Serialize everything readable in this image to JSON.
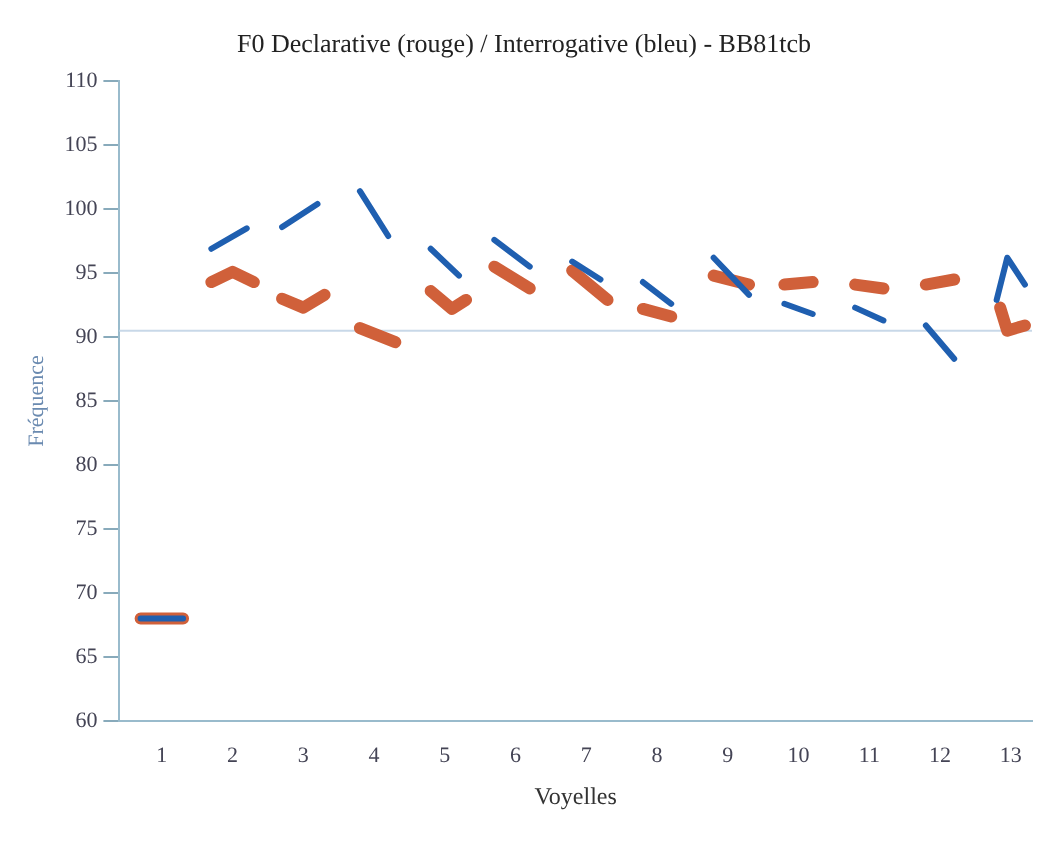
{
  "chart_data": {
    "type": "line",
    "title": "F0 Declarative (rouge) / Interrogative (bleu) - BB81tcb",
    "xlabel": "Voyelles",
    "ylabel": "Fréquence",
    "xlim": [
      0.4,
      13.3
    ],
    "xticks": [
      1,
      2,
      3,
      4,
      5,
      6,
      7,
      8,
      9,
      10,
      11,
      12,
      13
    ],
    "ylim": [
      60,
      110
    ],
    "yticks": [
      60,
      65,
      70,
      75,
      80,
      85,
      90,
      95,
      100,
      105,
      110
    ],
    "grid": false,
    "legend": false,
    "marker": "none",
    "line_style": "solid",
    "ref_lines": [
      {
        "axis": "y",
        "value": 90.5,
        "color": "#c8d8e8"
      }
    ],
    "series": [
      {
        "color": "#d0603a",
        "x": [
          0.7,
          1.3,
          null,
          1.7,
          2.0,
          2.3,
          null,
          2.7,
          3.0,
          3.3,
          null,
          3.8,
          4.3,
          null,
          4.8,
          5.1,
          5.3,
          null,
          5.7,
          6.2,
          null,
          6.8,
          7.3,
          null,
          7.8,
          8.2,
          null,
          8.8,
          9.3,
          null,
          9.8,
          10.2,
          null,
          10.8,
          11.2,
          null,
          11.8,
          12.2,
          null,
          12.85,
          12.95,
          13.2
        ],
        "values": [
          68,
          68,
          null,
          94.3,
          95.1,
          94.3,
          null,
          93.0,
          92.3,
          93.3,
          null,
          90.7,
          89.6,
          null,
          93.6,
          92.2,
          92.9,
          null,
          95.5,
          93.8,
          null,
          95.2,
          92.9,
          null,
          92.2,
          91.6,
          null,
          94.8,
          94.1,
          null,
          94.1,
          94.3,
          null,
          94.1,
          93.8,
          null,
          94.1,
          94.5,
          null,
          92.3,
          90.5,
          90.9
        ]
      },
      {
        "color": "#1f5fb0",
        "x": [
          0.7,
          1.3,
          null,
          1.7,
          2.2,
          null,
          2.7,
          3.2,
          null,
          3.8,
          4.2,
          null,
          4.8,
          5.2,
          null,
          5.7,
          6.2,
          null,
          6.8,
          7.2,
          null,
          7.8,
          8.2,
          null,
          8.8,
          9.3,
          null,
          9.8,
          10.2,
          null,
          10.8,
          11.2,
          null,
          11.8,
          12.2,
          null,
          12.8,
          12.95,
          13.2
        ],
        "values": [
          68,
          68,
          null,
          96.9,
          98.5,
          null,
          98.6,
          100.4,
          null,
          101.4,
          97.9,
          null,
          96.9,
          94.8,
          null,
          97.6,
          95.5,
          null,
          95.9,
          94.5,
          null,
          94.3,
          92.6,
          null,
          96.2,
          93.3,
          null,
          92.6,
          91.8,
          null,
          92.3,
          91.3,
          null,
          90.9,
          88.3,
          null,
          92.9,
          96.2,
          94.1
        ]
      }
    ]
  }
}
